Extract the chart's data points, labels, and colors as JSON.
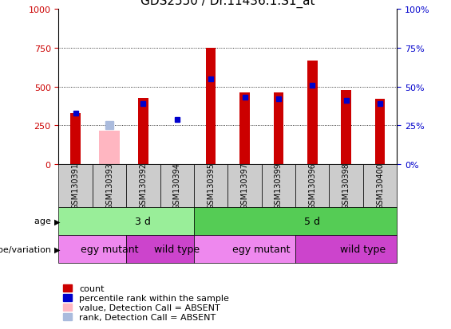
{
  "title": "GDS2550 / Dr.11436.1.S1_at",
  "samples": [
    "GSM130391",
    "GSM130393",
    "GSM130392",
    "GSM130394",
    "GSM130395",
    "GSM130397",
    "GSM130399",
    "GSM130396",
    "GSM130398",
    "GSM130400"
  ],
  "count_values": [
    330,
    0,
    425,
    0,
    750,
    465,
    460,
    670,
    480,
    420
  ],
  "count_absent": [
    0,
    215,
    0,
    0,
    0,
    0,
    0,
    0,
    0,
    0
  ],
  "rank_values": [
    330,
    0,
    390,
    290,
    550,
    430,
    420,
    510,
    410,
    390
  ],
  "rank_absent": [
    0,
    250,
    0,
    0,
    0,
    0,
    0,
    0,
    0,
    0
  ],
  "is_absent": [
    false,
    true,
    false,
    false,
    false,
    false,
    false,
    false,
    false,
    false
  ],
  "age_groups": [
    {
      "label": "3 d",
      "start": 0,
      "end": 4,
      "color": "#99EE99"
    },
    {
      "label": "5 d",
      "start": 4,
      "end": 10,
      "color": "#55CC55"
    }
  ],
  "genotype_groups": [
    {
      "label": "egy mutant",
      "start": 0,
      "end": 2,
      "color": "#EE88EE"
    },
    {
      "label": "wild type",
      "start": 2,
      "end": 4,
      "color": "#CC44CC"
    },
    {
      "label": "egy mutant",
      "start": 4,
      "end": 7,
      "color": "#EE88EE"
    },
    {
      "label": "wild type",
      "start": 7,
      "end": 10,
      "color": "#CC44CC"
    }
  ],
  "ylim_left": [
    0,
    1000
  ],
  "ylim_right": [
    0,
    100
  ],
  "yticks_left": [
    0,
    250,
    500,
    750,
    1000
  ],
  "yticks_right": [
    0,
    25,
    50,
    75,
    100
  ],
  "color_count": "#CC0000",
  "color_rank": "#0000CC",
  "color_count_absent": "#FFB6C1",
  "color_rank_absent": "#AABBDD",
  "bar_width": 0.5,
  "tick_color_left": "#CC0000",
  "tick_color_right": "#0000CC",
  "grid_color": "#000000",
  "bg_color": "#FFFFFF",
  "plot_bg": "#FFFFFF",
  "sample_bg": "#CCCCCC",
  "xlabel_fontsize": 7,
  "title_fontsize": 11,
  "legend_fontsize": 8,
  "age_label": "age",
  "genotype_label": "genotype/variation"
}
